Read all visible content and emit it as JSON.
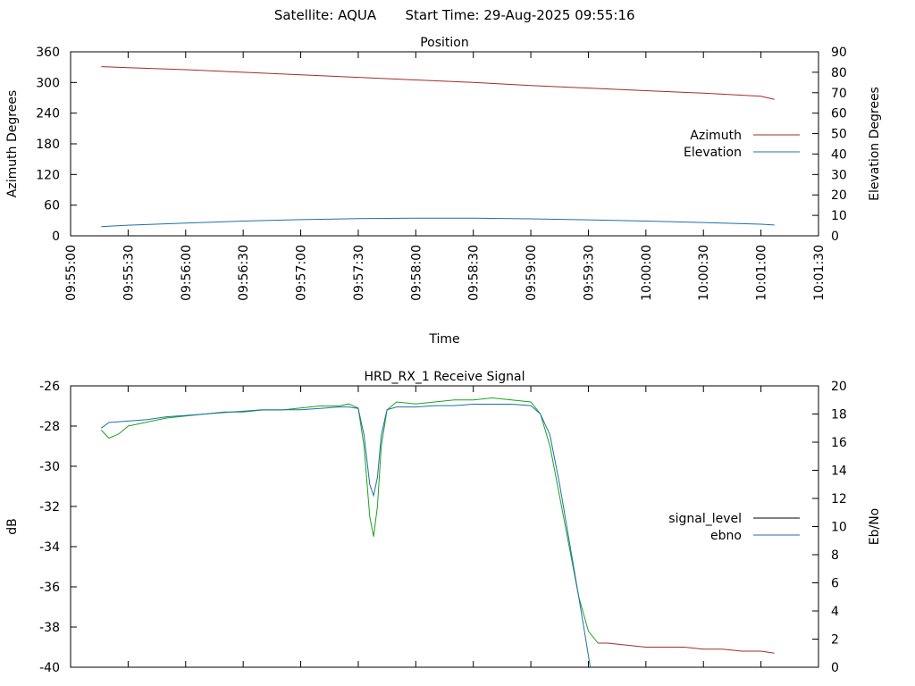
{
  "header": {
    "satellite": "Satellite: AQUA",
    "start_time": "Start Time: 29-Aug-2025 09:55:16"
  },
  "chart_data": [
    {
      "type": "line",
      "title": "Position",
      "xlabel": "Time",
      "ylabel": "Azimuth Degrees",
      "y2label": "Elevation Degrees",
      "xlim": [
        "09:55:00",
        "10:01:30"
      ],
      "x_ticks": [
        "09:55:00",
        "09:55:30",
        "09:56:00",
        "09:56:30",
        "09:57:00",
        "09:57:30",
        "09:58:00",
        "09:58:30",
        "09:59:00",
        "09:59:30",
        "10:00:00",
        "10:00:30",
        "10:01:00",
        "10:01:30"
      ],
      "ylim": [
        0,
        360
      ],
      "y_ticks": [
        "0",
        "60",
        "120",
        "180",
        "240",
        "300",
        "360"
      ],
      "y2lim": [
        0,
        90
      ],
      "y2_ticks": [
        "0",
        "10",
        "20",
        "30",
        "40",
        "50",
        "60",
        "70",
        "80",
        "90"
      ],
      "legend": "center-right",
      "colors": {
        "azimuth": "#a52a2a",
        "elevation": "#1f6fa8"
      },
      "series": [
        {
          "name": "Azimuth",
          "axis": "left",
          "x": [
            "09:55:16",
            "09:55:30",
            "09:56:00",
            "09:56:30",
            "09:57:00",
            "09:57:30",
            "09:58:00",
            "09:58:30",
            "09:59:00",
            "09:59:30",
            "10:00:00",
            "10:00:30",
            "10:01:00",
            "10:01:07"
          ],
          "values": [
            331,
            329,
            325,
            320,
            315,
            310,
            305,
            300,
            294,
            289,
            284,
            279,
            273,
            267
          ]
        },
        {
          "name": "Elevation",
          "axis": "right",
          "x": [
            "09:55:16",
            "09:55:30",
            "09:56:00",
            "09:56:30",
            "09:57:00",
            "09:57:30",
            "09:58:00",
            "09:58:30",
            "09:59:00",
            "09:59:30",
            "10:00:00",
            "10:00:30",
            "10:01:00",
            "10:01:07"
          ],
          "values": [
            4.5,
            5.2,
            6.2,
            7.2,
            7.9,
            8.4,
            8.6,
            8.6,
            8.3,
            7.8,
            7.2,
            6.5,
            5.7,
            5.3
          ]
        }
      ]
    },
    {
      "type": "line",
      "title": "HRD_RX_1 Receive Signal",
      "ylabel": "dB",
      "y2label": "Eb/No",
      "xlim": [
        "09:55:00",
        "10:01:30"
      ],
      "ylim": [
        -40,
        -26
      ],
      "y_ticks": [
        "-40",
        "-38",
        "-36",
        "-34",
        "-32",
        "-30",
        "-28",
        "-26"
      ],
      "y2lim": [
        0,
        20
      ],
      "y2_ticks": [
        "0",
        "2",
        "4",
        "6",
        "8",
        "10",
        "12",
        "14",
        "16",
        "18",
        "20"
      ],
      "legend": "center-right",
      "colors": {
        "signal_level": "#000000",
        "ebno": "#1f6fa8",
        "signal_trace": "#1aa31a",
        "signal_tail": "#a52a2a"
      },
      "series": [
        {
          "name": "signal_level",
          "axis": "left",
          "x": [
            "09:55:16",
            "09:55:20",
            "09:55:25",
            "09:55:30",
            "09:55:40",
            "09:55:50",
            "09:56:00",
            "09:56:10",
            "09:56:20",
            "09:56:30",
            "09:56:40",
            "09:56:50",
            "09:57:00",
            "09:57:10",
            "09:57:20",
            "09:57:25",
            "09:57:30",
            "09:57:33",
            "09:57:36",
            "09:57:38",
            "09:57:40",
            "09:57:42",
            "09:57:45",
            "09:57:50",
            "09:58:00",
            "09:58:10",
            "09:58:20",
            "09:58:30",
            "09:58:40",
            "09:58:50",
            "09:59:00",
            "09:59:05",
            "09:59:10",
            "09:59:15",
            "09:59:20",
            "09:59:25",
            "09:59:30",
            "09:59:35",
            "09:59:40",
            "09:59:50",
            "10:00:00",
            "10:00:10",
            "10:00:20",
            "10:00:30",
            "10:00:40",
            "10:00:50",
            "10:01:00",
            "10:01:07"
          ],
          "values": [
            -28.2,
            -28.6,
            -28.4,
            -28.0,
            -27.8,
            -27.6,
            -27.5,
            -27.4,
            -27.3,
            -27.3,
            -27.2,
            -27.2,
            -27.1,
            -27.0,
            -27.0,
            -26.9,
            -27.1,
            -29.0,
            -32.5,
            -33.5,
            -32.0,
            -29.0,
            -27.2,
            -26.8,
            -26.9,
            -26.8,
            -26.7,
            -26.7,
            -26.6,
            -26.7,
            -26.8,
            -27.4,
            -29.0,
            -31.5,
            -34.0,
            -36.5,
            -38.2,
            -38.8,
            -38.8,
            -38.9,
            -39.0,
            -39.0,
            -39.0,
            -39.1,
            -39.1,
            -39.2,
            -39.2,
            -39.3
          ]
        },
        {
          "name": "ebno",
          "axis": "right",
          "x": [
            "09:55:16",
            "09:55:20",
            "09:55:30",
            "09:55:40",
            "09:55:50",
            "09:56:00",
            "09:56:10",
            "09:56:20",
            "09:56:30",
            "09:56:40",
            "09:56:50",
            "09:57:00",
            "09:57:10",
            "09:57:20",
            "09:57:25",
            "09:57:30",
            "09:57:33",
            "09:57:36",
            "09:57:38",
            "09:57:40",
            "09:57:42",
            "09:57:45",
            "09:57:50",
            "09:58:00",
            "09:58:10",
            "09:58:20",
            "09:58:30",
            "09:58:40",
            "09:58:50",
            "09:59:00",
            "09:59:05",
            "09:59:10",
            "09:59:15",
            "09:59:20",
            "09:59:25",
            "09:59:28",
            "09:59:31"
          ],
          "values": [
            17.0,
            17.4,
            17.5,
            17.6,
            17.8,
            17.9,
            18.0,
            18.1,
            18.2,
            18.3,
            18.3,
            18.3,
            18.4,
            18.5,
            18.5,
            18.4,
            16.5,
            13.0,
            12.2,
            13.5,
            16.5,
            18.3,
            18.5,
            18.5,
            18.6,
            18.6,
            18.7,
            18.7,
            18.7,
            18.6,
            18.0,
            16.5,
            13.0,
            9.0,
            5.0,
            2.5,
            0.0
          ]
        }
      ]
    }
  ]
}
